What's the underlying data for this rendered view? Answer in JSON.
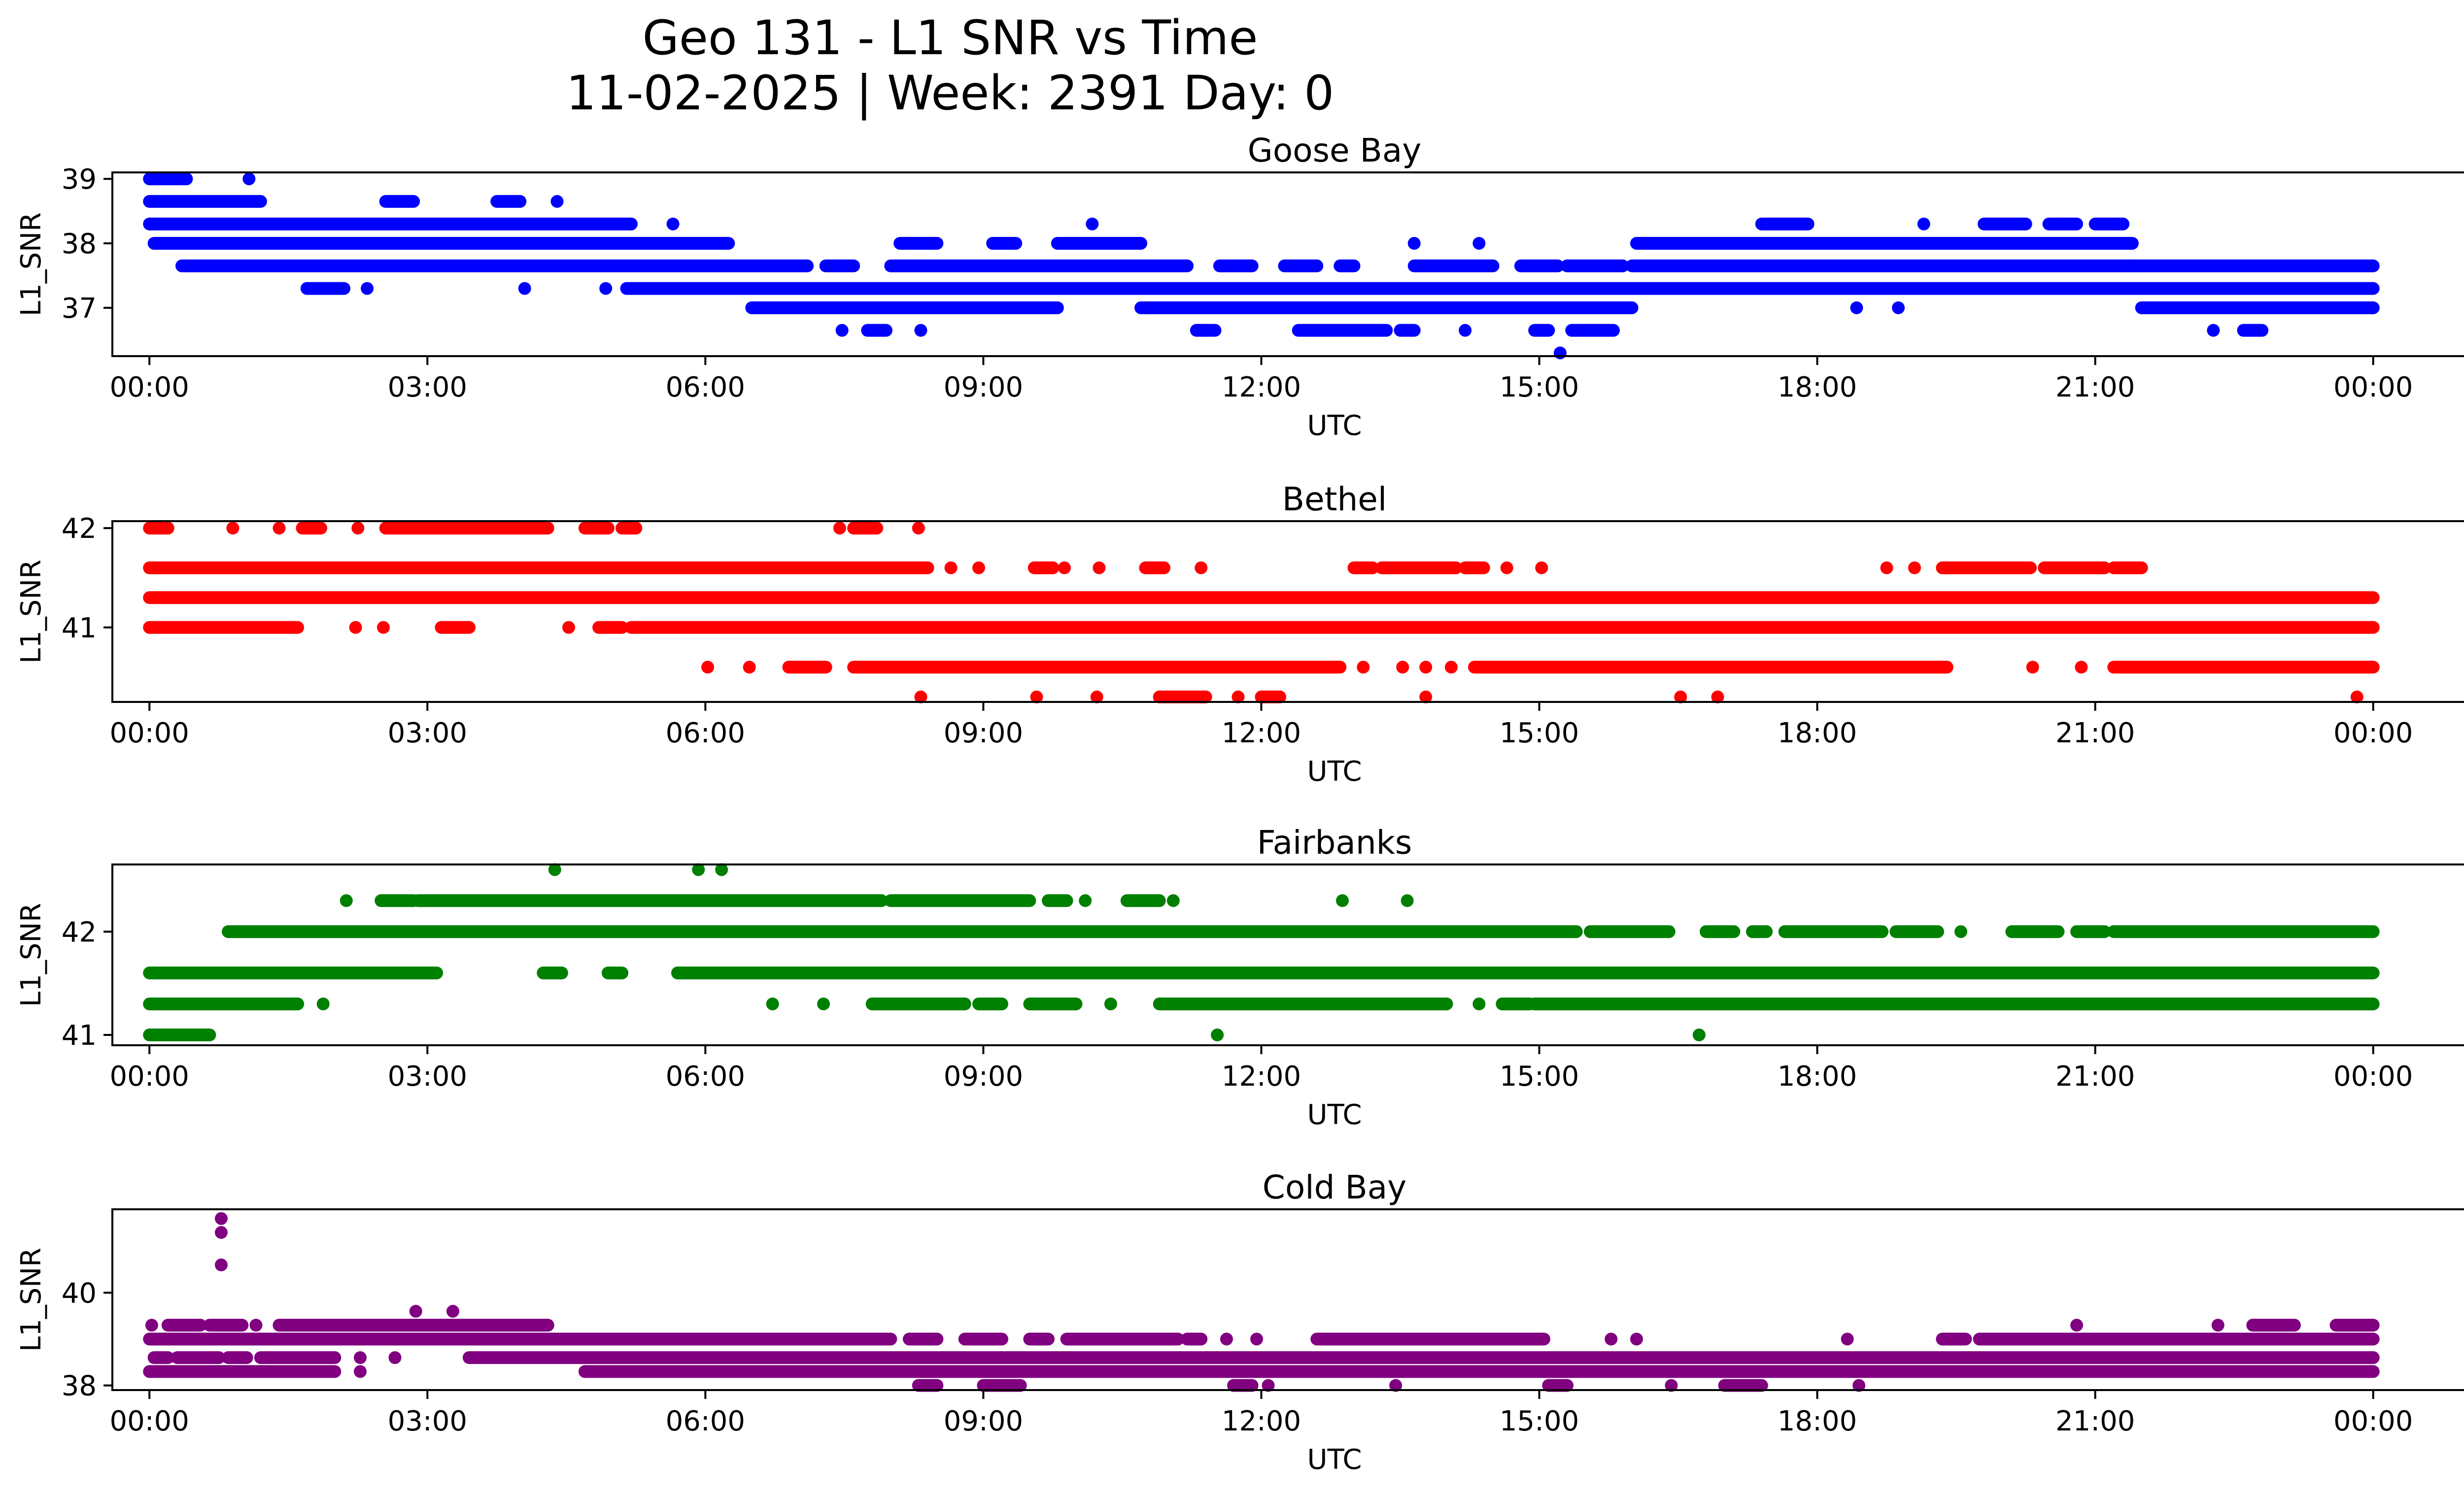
{
  "figure": {
    "title_line1": "Geo 131 - L1 SNR vs Time",
    "title_line2": "11-02-2025 | Week: 2391 Day: 0"
  },
  "chart_data": [
    {
      "type": "scatter",
      "title": "Goose Bay",
      "xlabel": "UTC",
      "ylabel": "L1_SNR",
      "color": "#0000ff",
      "xlim_hours": [
        -0.4,
        25.98
      ],
      "ylim": [
        36.25,
        39.1
      ],
      "yticks": [
        37,
        38,
        39
      ],
      "xtick_labels": [
        "00:00",
        "03:00",
        "06:00",
        "09:00",
        "12:00",
        "15:00",
        "18:00",
        "21:00",
        "00:00"
      ],
      "series_bands": [
        {
          "snr": 39.0,
          "segments": [
            [
              0.0,
              0.4
            ],
            [
              1.05,
              1.1
            ]
          ]
        },
        {
          "snr": 38.65,
          "segments": [
            [
              0.0,
              1.2
            ],
            [
              2.55,
              2.85
            ],
            [
              3.75,
              4.0
            ],
            [
              4.35,
              4.45
            ]
          ]
        },
        {
          "snr": 38.3,
          "segments": [
            [
              0.0,
              5.2
            ],
            [
              5.6,
              5.7
            ],
            [
              10.15,
              10.2
            ],
            [
              17.4,
              17.9
            ],
            [
              19.1,
              19.2
            ],
            [
              19.8,
              20.25
            ],
            [
              20.5,
              20.8
            ],
            [
              21.0,
              21.3
            ]
          ]
        },
        {
          "snr": 38.0,
          "segments": [
            [
              0.05,
              6.25
            ],
            [
              8.1,
              8.5
            ],
            [
              9.1,
              9.35
            ],
            [
              9.8,
              10.7
            ],
            [
              13.6,
              13.7
            ],
            [
              14.3,
              14.4
            ],
            [
              16.05,
              21.4
            ]
          ]
        },
        {
          "snr": 37.65,
          "segments": [
            [
              0.35,
              7.1
            ],
            [
              7.3,
              7.6
            ],
            [
              8.0,
              11.2
            ],
            [
              11.55,
              11.9
            ],
            [
              12.25,
              12.6
            ],
            [
              12.85,
              13.0
            ],
            [
              13.65,
              14.5
            ],
            [
              14.8,
              15.2
            ],
            [
              15.3,
              15.9
            ],
            [
              16.0,
              21.4
            ],
            [
              21.4,
              24.0
            ]
          ]
        },
        {
          "snr": 37.3,
          "segments": [
            [
              1.7,
              2.1
            ],
            [
              2.3,
              2.4
            ],
            [
              4.0,
              4.1
            ],
            [
              4.9,
              4.95
            ],
            [
              5.15,
              24.0
            ]
          ]
        },
        {
          "snr": 37.0,
          "segments": [
            [
              6.5,
              9.8
            ],
            [
              10.7,
              16.0
            ],
            [
              18.4,
              18.45
            ],
            [
              18.85,
              18.9
            ],
            [
              21.5,
              24.0
            ]
          ]
        },
        {
          "snr": 36.65,
          "segments": [
            [
              7.45,
              7.5
            ],
            [
              7.75,
              7.95
            ],
            [
              8.3,
              8.35
            ],
            [
              11.3,
              11.5
            ],
            [
              12.4,
              13.35
            ],
            [
              13.5,
              13.65
            ],
            [
              14.15,
              14.25
            ],
            [
              14.95,
              15.1
            ],
            [
              15.35,
              15.8
            ],
            [
              22.25,
              22.3
            ],
            [
              22.6,
              22.8
            ]
          ]
        },
        {
          "snr": 36.3,
          "segments": [
            [
              15.2,
              15.25
            ]
          ]
        }
      ]
    },
    {
      "type": "scatter",
      "title": "Bethel",
      "xlabel": "UTC",
      "ylabel": "L1_SNR",
      "color": "#ff0000",
      "xlim_hours": [
        -0.4,
        25.98
      ],
      "ylim": [
        40.25,
        42.07
      ],
      "yticks": [
        41,
        42
      ],
      "xtick_labels": [
        "00:00",
        "03:00",
        "06:00",
        "09:00",
        "12:00",
        "15:00",
        "18:00",
        "21:00",
        "00:00"
      ],
      "series_bands": [
        {
          "snr": 42.0,
          "segments": [
            [
              0.0,
              0.2
            ],
            [
              0.85,
              0.95
            ],
            [
              1.35,
              1.45
            ],
            [
              1.65,
              1.85
            ],
            [
              2.2,
              2.3
            ],
            [
              2.55,
              4.3
            ],
            [
              4.7,
              4.95
            ],
            [
              5.1,
              5.25
            ],
            [
              7.4,
              7.5
            ],
            [
              7.6,
              7.85
            ],
            [
              8.25,
              8.35
            ]
          ]
        },
        {
          "snr": 41.6,
          "segments": [
            [
              0.0,
              8.4
            ],
            [
              8.6,
              8.7
            ],
            [
              8.9,
              9.0
            ],
            [
              9.55,
              9.75
            ],
            [
              9.85,
              9.9
            ],
            [
              10.2,
              10.3
            ],
            [
              10.75,
              10.95
            ],
            [
              11.3,
              11.4
            ],
            [
              13.0,
              13.2
            ],
            [
              13.3,
              14.1
            ],
            [
              14.2,
              14.4
            ],
            [
              14.6,
              14.7
            ],
            [
              15.0,
              15.05
            ],
            [
              18.7,
              18.8
            ],
            [
              19.0,
              19.1
            ],
            [
              19.35,
              20.3
            ],
            [
              20.45,
              21.1
            ],
            [
              21.2,
              21.5
            ]
          ]
        },
        {
          "snr": 41.3,
          "segments": [
            [
              0.0,
              24.0
            ]
          ]
        },
        {
          "snr": 41.0,
          "segments": [
            [
              0.0,
              1.6
            ],
            [
              2.2,
              2.25
            ],
            [
              2.5,
              2.55
            ],
            [
              3.15,
              3.45
            ],
            [
              4.5,
              4.55
            ],
            [
              4.85,
              5.1
            ],
            [
              5.2,
              24.0
            ]
          ]
        },
        {
          "snr": 40.6,
          "segments": [
            [
              6.0,
              6.05
            ],
            [
              6.45,
              6.5
            ],
            [
              6.9,
              7.3
            ],
            [
              7.6,
              12.85
            ],
            [
              13.05,
              13.15
            ],
            [
              13.5,
              13.55
            ],
            [
              13.75,
              13.8
            ],
            [
              14.0,
              14.1
            ],
            [
              14.3,
              19.4
            ],
            [
              20.3,
              20.35
            ],
            [
              20.8,
              20.9
            ],
            [
              21.2,
              24.0
            ]
          ]
        },
        {
          "snr": 40.3,
          "segments": [
            [
              8.3,
              8.35
            ],
            [
              9.55,
              9.6
            ],
            [
              10.2,
              10.25
            ],
            [
              10.9,
              11.4
            ],
            [
              11.7,
              11.8
            ],
            [
              12.0,
              12.2
            ],
            [
              13.75,
              13.8
            ],
            [
              16.5,
              16.55
            ],
            [
              16.9,
              16.95
            ],
            [
              23.8,
              23.85
            ]
          ]
        }
      ]
    },
    {
      "type": "scatter",
      "title": "Fairbanks",
      "xlabel": "UTC",
      "ylabel": "L1_SNR",
      "color": "#008000",
      "xlim_hours": [
        -0.4,
        25.98
      ],
      "ylim": [
        40.9,
        42.65
      ],
      "yticks": [
        41,
        42
      ],
      "xtick_labels": [
        "00:00",
        "03:00",
        "06:00",
        "09:00",
        "12:00",
        "15:00",
        "18:00",
        "21:00",
        "00:00"
      ],
      "series_bands": [
        {
          "snr": 42.6,
          "segments": [
            [
              4.35,
              4.4
            ],
            [
              5.9,
              5.95
            ],
            [
              6.15,
              6.2
            ]
          ]
        },
        {
          "snr": 42.3,
          "segments": [
            [
              2.1,
              2.15
            ],
            [
              2.5,
              2.85
            ],
            [
              2.9,
              7.9
            ],
            [
              8.0,
              9.5
            ],
            [
              9.7,
              9.9
            ],
            [
              10.05,
              10.15
            ],
            [
              10.55,
              10.9
            ],
            [
              11.0,
              11.1
            ],
            [
              12.85,
              12.9
            ],
            [
              13.55,
              13.6
            ]
          ]
        },
        {
          "snr": 42.0,
          "segments": [
            [
              0.85,
              15.4
            ],
            [
              15.55,
              16.4
            ],
            [
              16.8,
              17.1
            ],
            [
              17.3,
              17.45
            ],
            [
              17.65,
              18.7
            ],
            [
              18.85,
              19.3
            ],
            [
              19.5,
              19.6
            ],
            [
              20.1,
              20.6
            ],
            [
              20.8,
              21.1
            ],
            [
              21.2,
              24.0
            ]
          ]
        },
        {
          "snr": 41.6,
          "segments": [
            [
              0.0,
              3.1
            ],
            [
              4.25,
              4.45
            ],
            [
              4.95,
              5.1
            ],
            [
              5.7,
              24.0
            ]
          ]
        },
        {
          "snr": 41.3,
          "segments": [
            [
              0.0,
              1.6
            ],
            [
              1.85,
              1.9
            ],
            [
              6.7,
              6.75
            ],
            [
              7.25,
              7.3
            ],
            [
              7.8,
              8.8
            ],
            [
              8.95,
              9.2
            ],
            [
              9.5,
              10.0
            ],
            [
              10.35,
              10.4
            ],
            [
              10.9,
              14.0
            ],
            [
              14.3,
              14.4
            ],
            [
              14.6,
              14.9
            ],
            [
              14.95,
              24.0
            ]
          ]
        },
        {
          "snr": 41.0,
          "segments": [
            [
              0.0,
              0.65
            ],
            [
              11.5,
              11.55
            ],
            [
              16.7,
              16.75
            ]
          ]
        }
      ]
    },
    {
      "type": "scatter",
      "title": "Cold Bay",
      "xlabel": "UTC",
      "ylabel": "L1_SNR",
      "color": "#800080",
      "xlim_hours": [
        -0.4,
        25.98
      ],
      "ylim": [
        37.9,
        41.8
      ],
      "yticks": [
        38,
        40
      ],
      "xtick_labels": [
        "00:00",
        "03:00",
        "06:00",
        "09:00",
        "12:00",
        "15:00",
        "18:00",
        "21:00",
        "00:00"
      ],
      "series_bands": [
        {
          "snr": 41.6,
          "segments": [
            [
              0.75,
              0.8
            ]
          ]
        },
        {
          "snr": 41.3,
          "segments": [
            [
              0.75,
              0.8
            ]
          ]
        },
        {
          "snr": 40.6,
          "segments": [
            [
              0.75,
              0.8
            ]
          ]
        },
        {
          "snr": 39.6,
          "segments": [
            [
              2.85,
              2.9
            ],
            [
              3.25,
              3.3
            ]
          ]
        },
        {
          "snr": 39.3,
          "segments": [
            [
              0.0,
              0.05
            ],
            [
              0.2,
              0.55
            ],
            [
              0.65,
              1.0
            ],
            [
              1.1,
              1.2
            ],
            [
              1.4,
              4.3
            ],
            [
              20.75,
              20.85
            ],
            [
              22.3,
              22.35
            ],
            [
              22.7,
              23.15
            ],
            [
              23.6,
              24.0
            ]
          ]
        },
        {
          "snr": 39.0,
          "segments": [
            [
              0.0,
              8.0
            ],
            [
              8.2,
              8.5
            ],
            [
              8.8,
              9.2
            ],
            [
              9.5,
              9.7
            ],
            [
              9.9,
              11.1
            ],
            [
              11.2,
              11.35
            ],
            [
              11.6,
              11.65
            ],
            [
              11.9,
              12.0
            ],
            [
              12.6,
              15.05
            ],
            [
              15.75,
              15.8
            ],
            [
              16.0,
              16.1
            ],
            [
              18.3,
              18.35
            ],
            [
              19.35,
              19.6
            ],
            [
              19.75,
              24.0
            ]
          ]
        },
        {
          "snr": 38.6,
          "segments": [
            [
              0.05,
              0.2
            ],
            [
              0.3,
              0.75
            ],
            [
              0.85,
              1.05
            ],
            [
              1.2,
              2.0
            ],
            [
              2.25,
              2.3
            ],
            [
              2.6,
              2.7
            ],
            [
              3.45,
              24.0
            ]
          ]
        },
        {
          "snr": 38.3,
          "segments": [
            [
              0.0,
              2.0
            ],
            [
              2.25,
              2.3
            ],
            [
              4.7,
              24.0
            ]
          ]
        },
        {
          "snr": 38.0,
          "segments": [
            [
              8.3,
              8.5
            ],
            [
              9.0,
              9.4
            ],
            [
              11.7,
              11.9
            ],
            [
              12.05,
              12.1
            ],
            [
              13.4,
              13.5
            ],
            [
              15.1,
              15.3
            ],
            [
              16.4,
              16.45
            ],
            [
              17.0,
              17.4
            ],
            [
              18.4,
              18.5
            ]
          ]
        }
      ]
    }
  ]
}
